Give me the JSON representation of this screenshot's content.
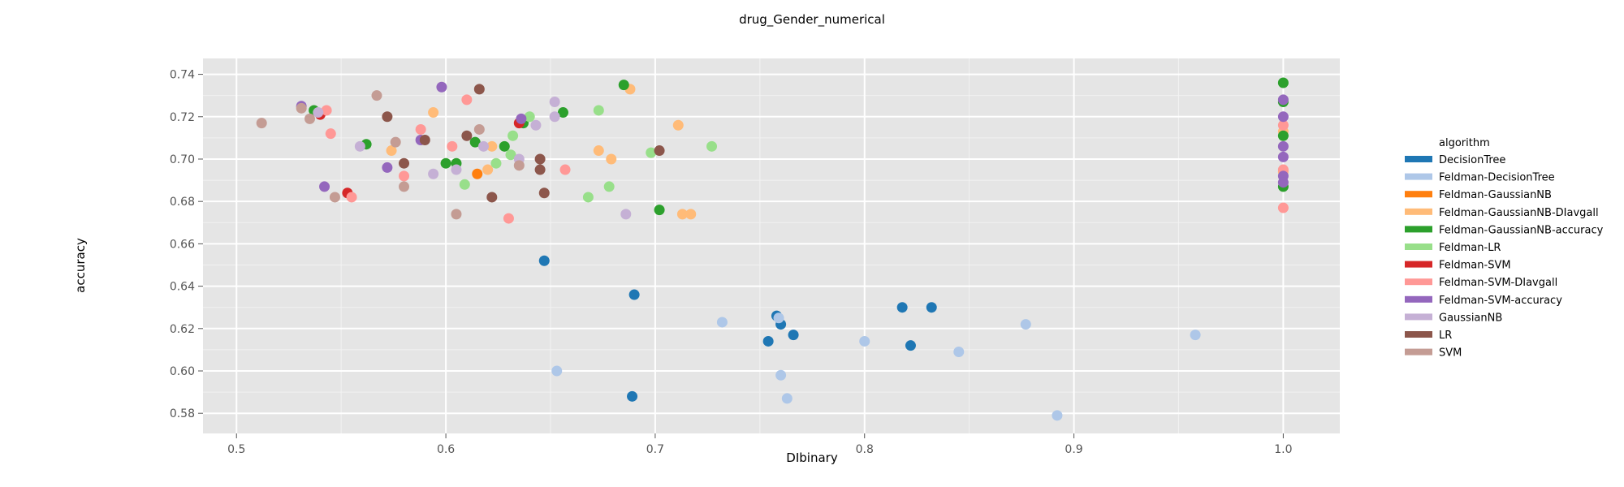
{
  "chart_data": {
    "type": "scatter",
    "title": "drug_Gender_numerical",
    "xlabel": "DIbinary",
    "ylabel": "accuracy",
    "xlim": [
      0.484,
      1.027
    ],
    "ylim": [
      0.5705,
      0.7475
    ],
    "xticks": [
      0.5,
      0.6,
      0.7,
      0.8,
      0.9,
      1.0
    ],
    "xtick_labels": [
      "0.5",
      "0.6",
      "0.7",
      "0.8",
      "0.9",
      "1.0"
    ],
    "yticks": [
      0.58,
      0.6,
      0.62,
      0.64,
      0.66,
      0.68,
      0.7,
      0.72,
      0.74
    ],
    "ytick_labels": [
      "0.58",
      "0.60",
      "0.62",
      "0.64",
      "0.66",
      "0.68",
      "0.70",
      "0.72",
      "0.74"
    ],
    "grid": true,
    "legend_placement": "right",
    "legend_title": "algorithm",
    "series": [
      {
        "name": "DecisionTree",
        "color": "#1f77b4",
        "points": [
          [
            0.647,
            0.652
          ],
          [
            0.69,
            0.636
          ],
          [
            0.758,
            0.626
          ],
          [
            0.76,
            0.622
          ],
          [
            0.754,
            0.614
          ],
          [
            0.766,
            0.617
          ],
          [
            0.689,
            0.588
          ],
          [
            0.818,
            0.63
          ],
          [
            0.832,
            0.63
          ],
          [
            0.822,
            0.612
          ]
        ]
      },
      {
        "name": "Feldman-DecisionTree",
        "color": "#aec7e8",
        "points": [
          [
            0.653,
            0.6
          ],
          [
            0.732,
            0.623
          ],
          [
            0.759,
            0.625
          ],
          [
            0.76,
            0.598
          ],
          [
            0.763,
            0.587
          ],
          [
            0.8,
            0.614
          ],
          [
            0.845,
            0.609
          ],
          [
            0.877,
            0.622
          ],
          [
            0.892,
            0.579
          ],
          [
            0.958,
            0.617
          ]
        ]
      },
      {
        "name": "Feldman-GaussianNB",
        "color": "#ff7f0e",
        "points": [
          [
            0.615,
            0.693
          ]
        ]
      },
      {
        "name": "Feldman-GaussianNB-DIavgall",
        "color": "#ffbb78",
        "points": [
          [
            0.574,
            0.704
          ],
          [
            0.594,
            0.722
          ],
          [
            0.62,
            0.695
          ],
          [
            0.622,
            0.706
          ],
          [
            0.673,
            0.704
          ],
          [
            0.679,
            0.7
          ],
          [
            0.688,
            0.733
          ],
          [
            0.711,
            0.716
          ],
          [
            0.713,
            0.674
          ],
          [
            0.717,
            0.674
          ],
          [
            1.0,
            0.713
          ],
          [
            1.0,
            0.694
          ]
        ]
      },
      {
        "name": "Feldman-GaussianNB-accuracy",
        "color": "#2ca02c",
        "points": [
          [
            0.537,
            0.723
          ],
          [
            0.562,
            0.707
          ],
          [
            0.6,
            0.698
          ],
          [
            0.605,
            0.698
          ],
          [
            0.614,
            0.708
          ],
          [
            0.628,
            0.706
          ],
          [
            0.637,
            0.717
          ],
          [
            0.656,
            0.722
          ],
          [
            0.685,
            0.735
          ],
          [
            0.702,
            0.676
          ],
          [
            1.0,
            0.736
          ],
          [
            1.0,
            0.727
          ],
          [
            1.0,
            0.711
          ],
          [
            1.0,
            0.687
          ]
        ]
      },
      {
        "name": "Feldman-LR",
        "color": "#98df8a",
        "points": [
          [
            0.609,
            0.688
          ],
          [
            0.624,
            0.698
          ],
          [
            0.631,
            0.702
          ],
          [
            0.632,
            0.711
          ],
          [
            0.64,
            0.72
          ],
          [
            0.668,
            0.682
          ],
          [
            0.673,
            0.723
          ],
          [
            0.678,
            0.687
          ],
          [
            0.698,
            0.703
          ],
          [
            0.727,
            0.706
          ]
        ]
      },
      {
        "name": "Feldman-SVM",
        "color": "#d62728",
        "points": [
          [
            0.54,
            0.721
          ],
          [
            0.553,
            0.684
          ],
          [
            0.635,
            0.717
          ]
        ]
      },
      {
        "name": "Feldman-SVM-DIavgall",
        "color": "#ff9896",
        "points": [
          [
            0.543,
            0.723
          ],
          [
            0.545,
            0.712
          ],
          [
            0.555,
            0.682
          ],
          [
            0.58,
            0.692
          ],
          [
            0.588,
            0.714
          ],
          [
            0.603,
            0.706
          ],
          [
            0.61,
            0.728
          ],
          [
            0.63,
            0.672
          ],
          [
            0.657,
            0.695
          ],
          [
            1.0,
            0.716
          ],
          [
            1.0,
            0.695
          ],
          [
            1.0,
            0.677
          ]
        ]
      },
      {
        "name": "Feldman-SVM-accuracy",
        "color": "#9467bd",
        "points": [
          [
            0.531,
            0.725
          ],
          [
            0.542,
            0.687
          ],
          [
            0.572,
            0.696
          ],
          [
            0.588,
            0.709
          ],
          [
            0.598,
            0.734
          ],
          [
            0.636,
            0.719
          ],
          [
            1.0,
            0.728
          ],
          [
            1.0,
            0.72
          ],
          [
            1.0,
            0.706
          ],
          [
            1.0,
            0.701
          ],
          [
            1.0,
            0.692
          ],
          [
            1.0,
            0.689
          ]
        ]
      },
      {
        "name": "GaussianNB",
        "color": "#c5b0d5",
        "points": [
          [
            0.539,
            0.722
          ],
          [
            0.559,
            0.706
          ],
          [
            0.594,
            0.693
          ],
          [
            0.605,
            0.695
          ],
          [
            0.618,
            0.706
          ],
          [
            0.635,
            0.7
          ],
          [
            0.643,
            0.716
          ],
          [
            0.652,
            0.727
          ],
          [
            0.652,
            0.72
          ],
          [
            0.686,
            0.674
          ]
        ]
      },
      {
        "name": "LR",
        "color": "#8c564b",
        "points": [
          [
            0.572,
            0.72
          ],
          [
            0.58,
            0.698
          ],
          [
            0.59,
            0.709
          ],
          [
            0.61,
            0.711
          ],
          [
            0.616,
            0.733
          ],
          [
            0.622,
            0.682
          ],
          [
            0.645,
            0.7
          ],
          [
            0.645,
            0.695
          ],
          [
            0.647,
            0.684
          ],
          [
            0.702,
            0.704
          ]
        ]
      },
      {
        "name": "SVM",
        "color": "#c49c94",
        "points": [
          [
            0.512,
            0.717
          ],
          [
            0.531,
            0.724
          ],
          [
            0.535,
            0.719
          ],
          [
            0.547,
            0.682
          ],
          [
            0.567,
            0.73
          ],
          [
            0.576,
            0.708
          ],
          [
            0.58,
            0.687
          ],
          [
            0.605,
            0.674
          ],
          [
            0.616,
            0.714
          ],
          [
            0.635,
            0.697
          ]
        ]
      }
    ]
  }
}
